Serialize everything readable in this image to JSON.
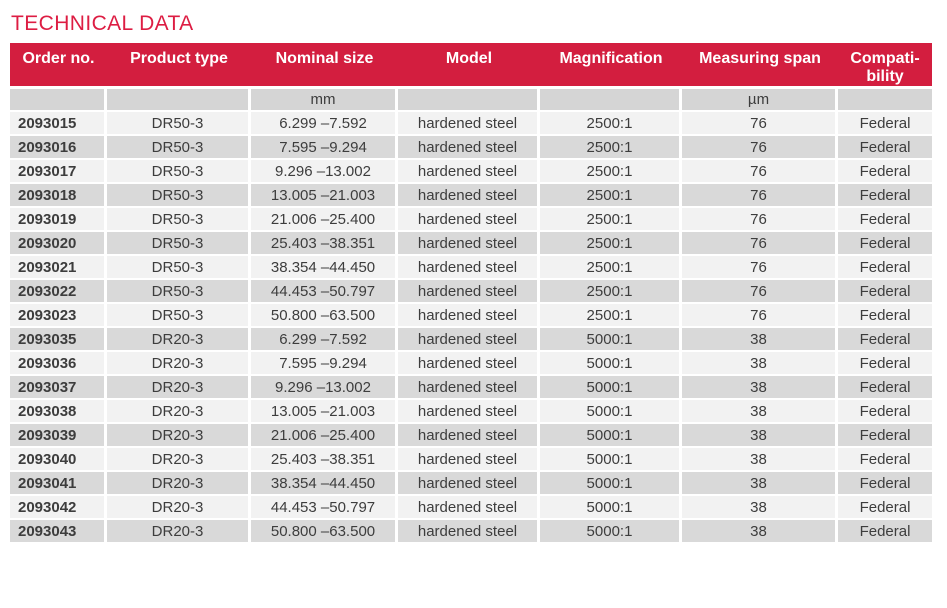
{
  "page": {
    "title": "TECHNICAL DATA"
  },
  "colors": {
    "accent_red": "#d31e3f",
    "title_red": "#dd1d43",
    "row_light": "#f2f2f2",
    "row_dark": "#d9d9d9",
    "unit_row_gray": "#d5d5d5",
    "text_dark": "#3d3d3d",
    "header_text": "#ffffff"
  },
  "table": {
    "columns": [
      {
        "label": "Order no.",
        "unit": ""
      },
      {
        "label": "Product type",
        "unit": ""
      },
      {
        "label": "Nominal size",
        "unit": "mm"
      },
      {
        "label": "Model",
        "unit": ""
      },
      {
        "label": "Magnification",
        "unit": ""
      },
      {
        "label": "Measuring span",
        "unit": "µm"
      },
      {
        "label": "Compati-\nbility",
        "unit": ""
      }
    ],
    "rows": [
      [
        "2093015",
        "DR50-3",
        "6.299 –7.592",
        "hardened steel",
        "2500:1",
        "76",
        "Federal"
      ],
      [
        "2093016",
        "DR50-3",
        "7.595 –9.294",
        "hardened steel",
        "2500:1",
        "76",
        "Federal"
      ],
      [
        "2093017",
        "DR50-3",
        "9.296 –13.002",
        "hardened steel",
        "2500:1",
        "76",
        "Federal"
      ],
      [
        "2093018",
        "DR50-3",
        "13.005 –21.003",
        "hardened steel",
        "2500:1",
        "76",
        "Federal"
      ],
      [
        "2093019",
        "DR50-3",
        "21.006 –25.400",
        "hardened steel",
        "2500:1",
        "76",
        "Federal"
      ],
      [
        "2093020",
        "DR50-3",
        "25.403 –38.351",
        "hardened steel",
        "2500:1",
        "76",
        "Federal"
      ],
      [
        "2093021",
        "DR50-3",
        "38.354 –44.450",
        "hardened steel",
        "2500:1",
        "76",
        "Federal"
      ],
      [
        "2093022",
        "DR50-3",
        "44.453 –50.797",
        "hardened steel",
        "2500:1",
        "76",
        "Federal"
      ],
      [
        "2093023",
        "DR50-3",
        "50.800 –63.500",
        "hardened steel",
        "2500:1",
        "76",
        "Federal"
      ],
      [
        "2093035",
        "DR20-3",
        "6.299 –7.592",
        "hardened steel",
        "5000:1",
        "38",
        "Federal"
      ],
      [
        "2093036",
        "DR20-3",
        "7.595 –9.294",
        "hardened steel",
        "5000:1",
        "38",
        "Federal"
      ],
      [
        "2093037",
        "DR20-3",
        "9.296 –13.002",
        "hardened steel",
        "5000:1",
        "38",
        "Federal"
      ],
      [
        "2093038",
        "DR20-3",
        "13.005 –21.003",
        "hardened steel",
        "5000:1",
        "38",
        "Federal"
      ],
      [
        "2093039",
        "DR20-3",
        "21.006 –25.400",
        "hardened steel",
        "5000:1",
        "38",
        "Federal"
      ],
      [
        "2093040",
        "DR20-3",
        "25.403 –38.351",
        "hardened steel",
        "5000:1",
        "38",
        "Federal"
      ],
      [
        "2093041",
        "DR20-3",
        "38.354 –44.450",
        "hardened steel",
        "5000:1",
        "38",
        "Federal"
      ],
      [
        "2093042",
        "DR20-3",
        "44.453 –50.797",
        "hardened steel",
        "5000:1",
        "38",
        "Federal"
      ],
      [
        "2093043",
        "DR20-3",
        "50.800 –63.500",
        "hardened steel",
        "5000:1",
        "38",
        "Federal"
      ]
    ]
  }
}
